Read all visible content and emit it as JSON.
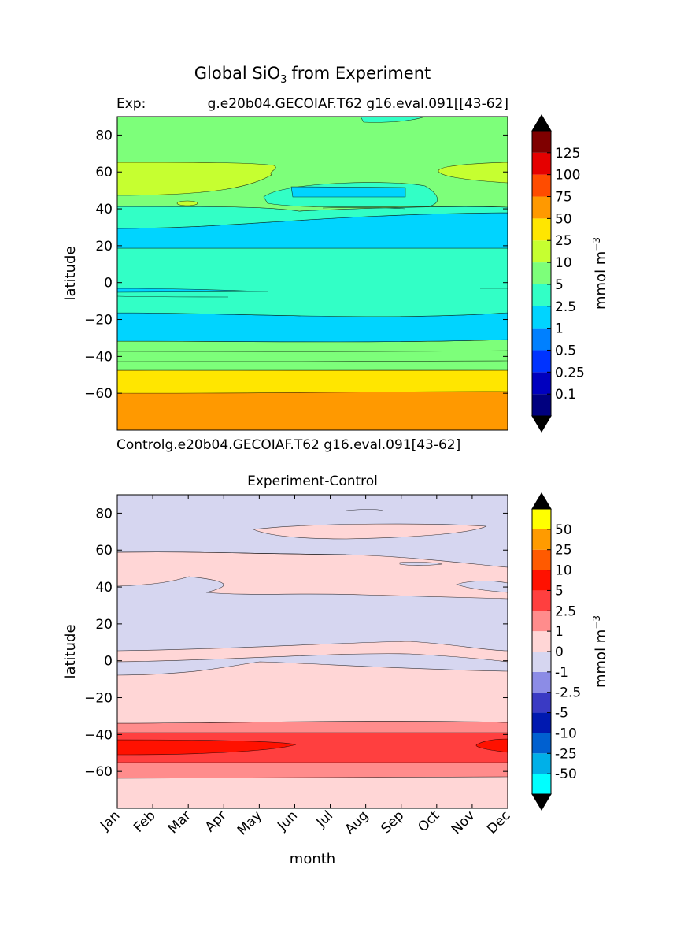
{
  "figure": {
    "title_main": "Global SiO",
    "title_sub": "3",
    "title_tail": "from Experiment"
  },
  "chart_data": [
    {
      "type": "heatmap",
      "title": "",
      "subtitle_left": "Exp:",
      "subtitle_right": "g.e20b04.GECOIAF.T62 g16.eval.091[[43-62]",
      "under_label": "Controlg.e20b04.GECOIAF.T62 g16.eval.091[43-62]",
      "xlabel": "",
      "ylabel": "latitude",
      "ylim": [
        -80,
        90
      ],
      "yticks": [
        80,
        60,
        40,
        20,
        0,
        -20,
        -40,
        -60
      ],
      "colorbar": {
        "label": "mmol m",
        "label_sup": "−3",
        "levels": [
          "0.1",
          "0.25",
          "0.5",
          "1",
          "2.5",
          "5",
          "10",
          "25",
          "50",
          "75",
          "100",
          "125"
        ],
        "colors": [
          "#00007f",
          "#0000bf",
          "#0033ff",
          "#0080ff",
          "#00d4ff",
          "#32ffc6",
          "#7dff7a",
          "#c6ff30",
          "#ffe600",
          "#ff9900",
          "#ff4c00",
          "#e50000",
          "#7f0000"
        ],
        "over_color": "#000000",
        "under_color": "#000000"
      },
      "bands": [
        {
          "lat_from": -80,
          "lat_to": -59,
          "level": "50-75"
        },
        {
          "lat_from": -59,
          "lat_to": -47,
          "level": "25-50"
        },
        {
          "lat_from": -47,
          "lat_to": -30,
          "level": "5-10"
        },
        {
          "lat_from": -30,
          "lat_to": -16,
          "level": "1-2.5"
        },
        {
          "lat_from": -16,
          "lat_to": 19,
          "level": "2.5-5"
        },
        {
          "lat_from": 19,
          "lat_to": 30,
          "level": "1-2.5"
        },
        {
          "lat_from": 30,
          "lat_to": 48,
          "level": "2.5-5"
        },
        {
          "lat_from": 48,
          "lat_to": 90,
          "level": "5-10"
        }
      ]
    },
    {
      "type": "heatmap",
      "title": "Experiment-Control",
      "xlabel": "month",
      "ylabel": "latitude",
      "ylim": [
        -80,
        90
      ],
      "yticks": [
        80,
        60,
        40,
        20,
        0,
        -20,
        -40,
        -60
      ],
      "x": [
        "Jan",
        "Feb",
        "Mar",
        "Apr",
        "May",
        "Jun",
        "Jul",
        "Aug",
        "Sep",
        "Oct",
        "Nov",
        "Dec"
      ],
      "colorbar": {
        "label": "mmol m",
        "label_sup": "−3",
        "levels": [
          "-50",
          "-25",
          "-10",
          "-5",
          "-2.5",
          "-1",
          "0",
          "1",
          "2.5",
          "5",
          "10",
          "25",
          "50"
        ],
        "colors": [
          "#00ffff",
          "#00b0e8",
          "#0060d0",
          "#0019b0",
          "#3a3ac4",
          "#8c8ce6",
          "#d6d6f0",
          "#ffd6d6",
          "#ff8c8c",
          "#ff3f3f",
          "#ff1100",
          "#ff5a00",
          "#ff9b00",
          "#ffff00"
        ],
        "over_color": "#000000",
        "under_color": "#000000"
      },
      "bands": [
        {
          "lat_from": -80,
          "lat_to": -62,
          "level": "0-1"
        },
        {
          "lat_from": -62,
          "lat_to": -54,
          "level": "1-2.5"
        },
        {
          "lat_from": -54,
          "lat_to": -39,
          "level": "2.5-5"
        },
        {
          "lat_from": -51,
          "lat_to": -42,
          "level": "5-10"
        },
        {
          "lat_from": -39,
          "lat_to": -33,
          "level": "1-2.5"
        },
        {
          "lat_from": -33,
          "lat_to": -2,
          "level": "0-1"
        },
        {
          "lat_from": -2,
          "lat_to": 6,
          "level": "-1-0"
        },
        {
          "lat_from": 6,
          "lat_to": 35,
          "level": "-1-0"
        },
        {
          "lat_from": 35,
          "lat_to": 59,
          "level": "0-1"
        },
        {
          "lat_from": 59,
          "lat_to": 90,
          "level": "-1-0"
        }
      ]
    }
  ]
}
